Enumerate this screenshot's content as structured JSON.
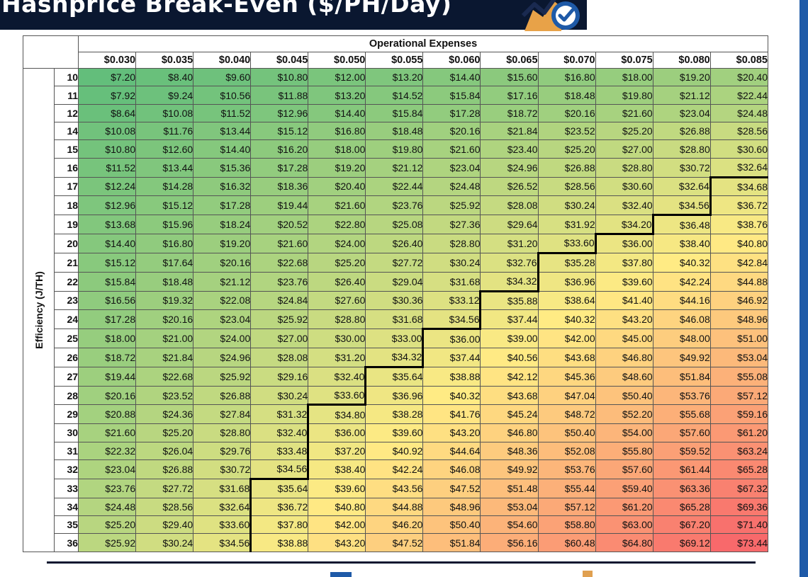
{
  "header": {
    "title": "Hashprice Break-Even ($/PH/Day)",
    "logo_icon": "chart-check-logo-icon"
  },
  "colors": {
    "title_bar": "#0a1730",
    "accent_blue": "#1e5aa8",
    "scale_low": "#63be7b",
    "scale_mid": "#ffeb84",
    "scale_high": "#f8696b",
    "threshold_line": "#000000"
  },
  "chart_data": {
    "type": "table",
    "title": "Hashprice Break-Even ($/PH/Day)",
    "col_header": "Operational Expenses",
    "row_header": "Efficiency (J/TH)",
    "columns": [
      "$0.030",
      "$0.035",
      "$0.040",
      "$0.045",
      "$0.050",
      "$0.055",
      "$0.060",
      "$0.065",
      "$0.070",
      "$0.075",
      "$0.080",
      "$0.085"
    ],
    "col_values": [
      0.03,
      0.035,
      0.04,
      0.045,
      0.05,
      0.055,
      0.06,
      0.065,
      0.07,
      0.075,
      0.08,
      0.085
    ],
    "rows": [
      "10",
      "11",
      "12",
      "14",
      "15",
      "16",
      "17",
      "18",
      "19",
      "20",
      "21",
      "22",
      "23",
      "24",
      "25",
      "26",
      "27",
      "28",
      "29",
      "30",
      "31",
      "32",
      "33",
      "34",
      "35",
      "36"
    ],
    "row_values": [
      10,
      11,
      12,
      14,
      15,
      16,
      17,
      18,
      19,
      20,
      21,
      22,
      23,
      24,
      25,
      26,
      27,
      28,
      29,
      30,
      31,
      32,
      33,
      34,
      35,
      36
    ],
    "cells": [
      [
        "$7.20",
        "$8.40",
        "$9.60",
        "$10.80",
        "$12.00",
        "$13.20",
        "$14.40",
        "$15.60",
        "$16.80",
        "$18.00",
        "$19.20",
        "$20.40"
      ],
      [
        "$7.92",
        "$9.24",
        "$10.56",
        "$11.88",
        "$13.20",
        "$14.52",
        "$15.84",
        "$17.16",
        "$18.48",
        "$19.80",
        "$21.12",
        "$22.44"
      ],
      [
        "$8.64",
        "$10.08",
        "$11.52",
        "$12.96",
        "$14.40",
        "$15.84",
        "$17.28",
        "$18.72",
        "$20.16",
        "$21.60",
        "$23.04",
        "$24.48"
      ],
      [
        "$10.08",
        "$11.76",
        "$13.44",
        "$15.12",
        "$16.80",
        "$18.48",
        "$20.16",
        "$21.84",
        "$23.52",
        "$25.20",
        "$26.88",
        "$28.56"
      ],
      [
        "$10.80",
        "$12.60",
        "$14.40",
        "$16.20",
        "$18.00",
        "$19.80",
        "$21.60",
        "$23.40",
        "$25.20",
        "$27.00",
        "$28.80",
        "$30.60"
      ],
      [
        "$11.52",
        "$13.44",
        "$15.36",
        "$17.28",
        "$19.20",
        "$21.12",
        "$23.04",
        "$24.96",
        "$26.88",
        "$28.80",
        "$30.72",
        "$32.64"
      ],
      [
        "$12.24",
        "$14.28",
        "$16.32",
        "$18.36",
        "$20.40",
        "$22.44",
        "$24.48",
        "$26.52",
        "$28.56",
        "$30.60",
        "$32.64",
        "$34.68"
      ],
      [
        "$12.96",
        "$15.12",
        "$17.28",
        "$19.44",
        "$21.60",
        "$23.76",
        "$25.92",
        "$28.08",
        "$30.24",
        "$32.40",
        "$34.56",
        "$36.72"
      ],
      [
        "$13.68",
        "$15.96",
        "$18.24",
        "$20.52",
        "$22.80",
        "$25.08",
        "$27.36",
        "$29.64",
        "$31.92",
        "$34.20",
        "$36.48",
        "$38.76"
      ],
      [
        "$14.40",
        "$16.80",
        "$19.20",
        "$21.60",
        "$24.00",
        "$26.40",
        "$28.80",
        "$31.20",
        "$33.60",
        "$36.00",
        "$38.40",
        "$40.80"
      ],
      [
        "$15.12",
        "$17.64",
        "$20.16",
        "$22.68",
        "$25.20",
        "$27.72",
        "$30.24",
        "$32.76",
        "$35.28",
        "$37.80",
        "$40.32",
        "$42.84"
      ],
      [
        "$15.84",
        "$18.48",
        "$21.12",
        "$23.76",
        "$26.40",
        "$29.04",
        "$31.68",
        "$34.32",
        "$36.96",
        "$39.60",
        "$42.24",
        "$44.88"
      ],
      [
        "$16.56",
        "$19.32",
        "$22.08",
        "$24.84",
        "$27.60",
        "$30.36",
        "$33.12",
        "$35.88",
        "$38.64",
        "$41.40",
        "$44.16",
        "$46.92"
      ],
      [
        "$17.28",
        "$20.16",
        "$23.04",
        "$25.92",
        "$28.80",
        "$31.68",
        "$34.56",
        "$37.44",
        "$40.32",
        "$43.20",
        "$46.08",
        "$48.96"
      ],
      [
        "$18.00",
        "$21.00",
        "$24.00",
        "$27.00",
        "$30.00",
        "$33.00",
        "$36.00",
        "$39.00",
        "$42.00",
        "$45.00",
        "$48.00",
        "$51.00"
      ],
      [
        "$18.72",
        "$21.84",
        "$24.96",
        "$28.08",
        "$31.20",
        "$34.32",
        "$37.44",
        "$40.56",
        "$43.68",
        "$46.80",
        "$49.92",
        "$53.04"
      ],
      [
        "$19.44",
        "$22.68",
        "$25.92",
        "$29.16",
        "$32.40",
        "$35.64",
        "$38.88",
        "$42.12",
        "$45.36",
        "$48.60",
        "$51.84",
        "$55.08"
      ],
      [
        "$20.16",
        "$23.52",
        "$26.88",
        "$30.24",
        "$33.60",
        "$36.96",
        "$40.32",
        "$43.68",
        "$47.04",
        "$50.40",
        "$53.76",
        "$57.12"
      ],
      [
        "$20.88",
        "$24.36",
        "$27.84",
        "$31.32",
        "$34.80",
        "$38.28",
        "$41.76",
        "$45.24",
        "$48.72",
        "$52.20",
        "$55.68",
        "$59.16"
      ],
      [
        "$21.60",
        "$25.20",
        "$28.80",
        "$32.40",
        "$36.00",
        "$39.60",
        "$43.20",
        "$46.80",
        "$50.40",
        "$54.00",
        "$57.60",
        "$61.20"
      ],
      [
        "$22.32",
        "$26.04",
        "$29.76",
        "$33.48",
        "$37.20",
        "$40.92",
        "$44.64",
        "$48.36",
        "$52.08",
        "$55.80",
        "$59.52",
        "$63.24"
      ],
      [
        "$23.04",
        "$26.88",
        "$30.72",
        "$34.56",
        "$38.40",
        "$42.24",
        "$46.08",
        "$49.92",
        "$53.76",
        "$57.60",
        "$61.44",
        "$65.28"
      ],
      [
        "$23.76",
        "$27.72",
        "$31.68",
        "$35.64",
        "$39.60",
        "$43.56",
        "$47.52",
        "$51.48",
        "$55.44",
        "$59.40",
        "$63.36",
        "$67.32"
      ],
      [
        "$24.48",
        "$28.56",
        "$32.64",
        "$36.72",
        "$40.80",
        "$44.88",
        "$48.96",
        "$53.04",
        "$57.12",
        "$61.20",
        "$65.28",
        "$69.36"
      ],
      [
        "$25.20",
        "$29.40",
        "$33.60",
        "$37.80",
        "$42.00",
        "$46.20",
        "$50.40",
        "$54.60",
        "$58.80",
        "$63.00",
        "$67.20",
        "$71.40"
      ],
      [
        "$25.92",
        "$30.24",
        "$34.56",
        "$38.88",
        "$43.20",
        "$47.52",
        "$51.84",
        "$56.16",
        "$60.48",
        "$64.80",
        "$69.12",
        "$73.44"
      ]
    ],
    "value_range": [
      7.2,
      73.44
    ],
    "threshold_value": 34.56
  }
}
